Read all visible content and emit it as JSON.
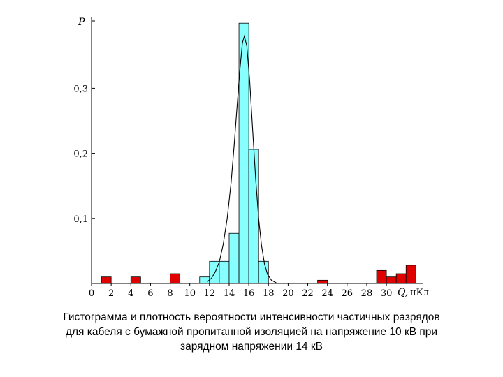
{
  "caption": {
    "line1": "Гистограмма и плотность вероятности интенсивности  частичных разрядов",
    "line2": "для кабеля с бумажной пропитанной изоляцией на напряжение 10 кВ при",
    "line3": "зарядном напряжении 14 кВ"
  },
  "colors": {
    "main_bar": "#88ffff",
    "outlier_bar": "#e00000",
    "curve": "#000000"
  },
  "chart_data": {
    "type": "bar",
    "ylabel": "P",
    "xlabel": "Q,",
    "xunit": "нКл",
    "xlim": [
      0,
      34
    ],
    "ylim": [
      0,
      0.4
    ],
    "xticks": [
      "0",
      "2",
      "4",
      "6",
      "8",
      "10",
      "12",
      "14",
      "16",
      "18",
      "20",
      "22",
      "24",
      "26",
      "28",
      "30"
    ],
    "yticks": [
      "0,1",
      "0,2",
      "0,3"
    ],
    "bars": [
      {
        "x0": 1,
        "x1": 2,
        "value": 0.01,
        "group": "outlier"
      },
      {
        "x0": 4,
        "x1": 5,
        "value": 0.01,
        "group": "outlier"
      },
      {
        "x0": 8,
        "x1": 9,
        "value": 0.015,
        "group": "outlier"
      },
      {
        "x0": 11,
        "x1": 12,
        "value": 0.01,
        "group": "main"
      },
      {
        "x0": 12,
        "x1": 13,
        "value": 0.034,
        "group": "main"
      },
      {
        "x0": 13,
        "x1": 14,
        "value": 0.034,
        "group": "main"
      },
      {
        "x0": 14,
        "x1": 15,
        "value": 0.077,
        "group": "main"
      },
      {
        "x0": 15,
        "x1": 16,
        "value": 0.4,
        "group": "main"
      },
      {
        "x0": 16,
        "x1": 17,
        "value": 0.206,
        "group": "main"
      },
      {
        "x0": 17,
        "x1": 18,
        "value": 0.034,
        "group": "main"
      },
      {
        "x0": 23,
        "x1": 24,
        "value": 0.005,
        "group": "outlier"
      },
      {
        "x0": 29,
        "x1": 30,
        "value": 0.02,
        "group": "outlier"
      },
      {
        "x0": 30,
        "x1": 31,
        "value": 0.01,
        "group": "outlier"
      },
      {
        "x0": 31,
        "x1": 32,
        "value": 0.015,
        "group": "outlier"
      },
      {
        "x0": 32,
        "x1": 33,
        "value": 0.028,
        "group": "outlier"
      }
    ],
    "density_curve": {
      "peak_x": 15.5,
      "peak_y": 0.38,
      "points": [
        [
          11.8,
          0.003
        ],
        [
          12.2,
          0.008
        ],
        [
          12.6,
          0.018
        ],
        [
          13.0,
          0.033
        ],
        [
          13.4,
          0.06
        ],
        [
          13.8,
          0.1
        ],
        [
          14.2,
          0.155
        ],
        [
          14.5,
          0.21
        ],
        [
          14.8,
          0.27
        ],
        [
          15.1,
          0.33
        ],
        [
          15.35,
          0.37
        ],
        [
          15.55,
          0.38
        ],
        [
          15.8,
          0.365
        ],
        [
          16.1,
          0.31
        ],
        [
          16.4,
          0.235
        ],
        [
          16.7,
          0.16
        ],
        [
          17.0,
          0.1
        ],
        [
          17.3,
          0.058
        ],
        [
          17.6,
          0.03
        ],
        [
          17.9,
          0.014
        ],
        [
          18.3,
          0.005
        ],
        [
          18.8,
          0.001
        ]
      ]
    }
  }
}
